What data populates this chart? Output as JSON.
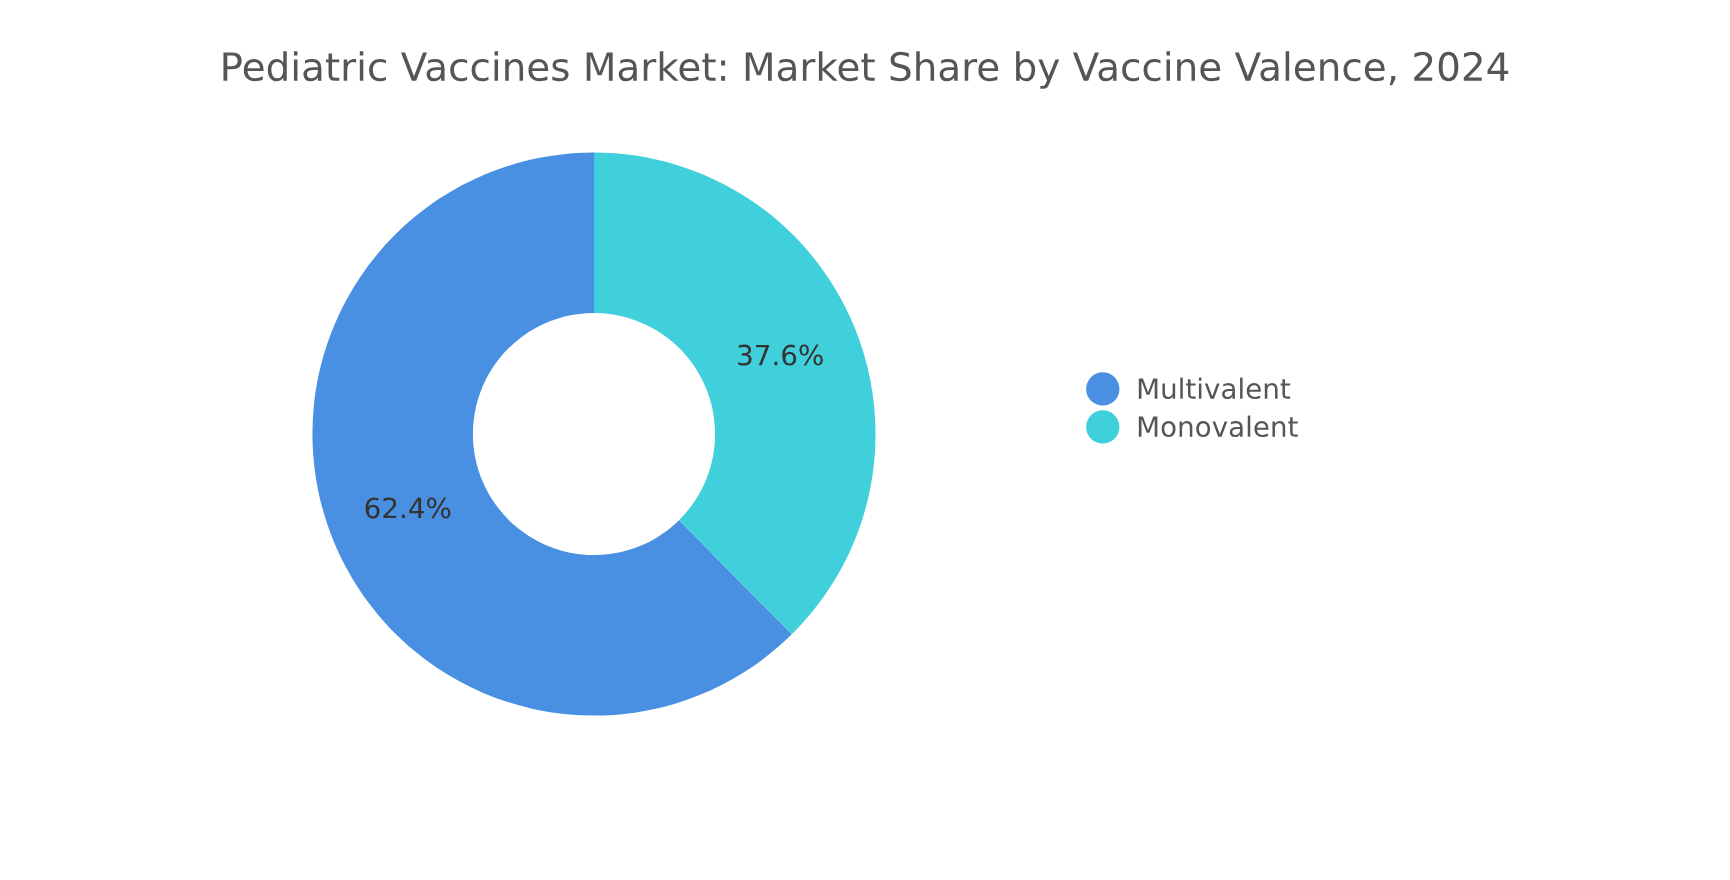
{
  "chart_data": {
    "type": "donut",
    "title": "Pediatric Vaccines Market: Market Share by Vaccine Valence, 2024",
    "categories": [
      "Multivalent",
      "Monovalent"
    ],
    "values": [
      62.4,
      37.6
    ],
    "colors": [
      "#4a90e2",
      "#40d0db"
    ],
    "value_labels": [
      "62.4%",
      "37.6%"
    ],
    "legend": "right"
  }
}
